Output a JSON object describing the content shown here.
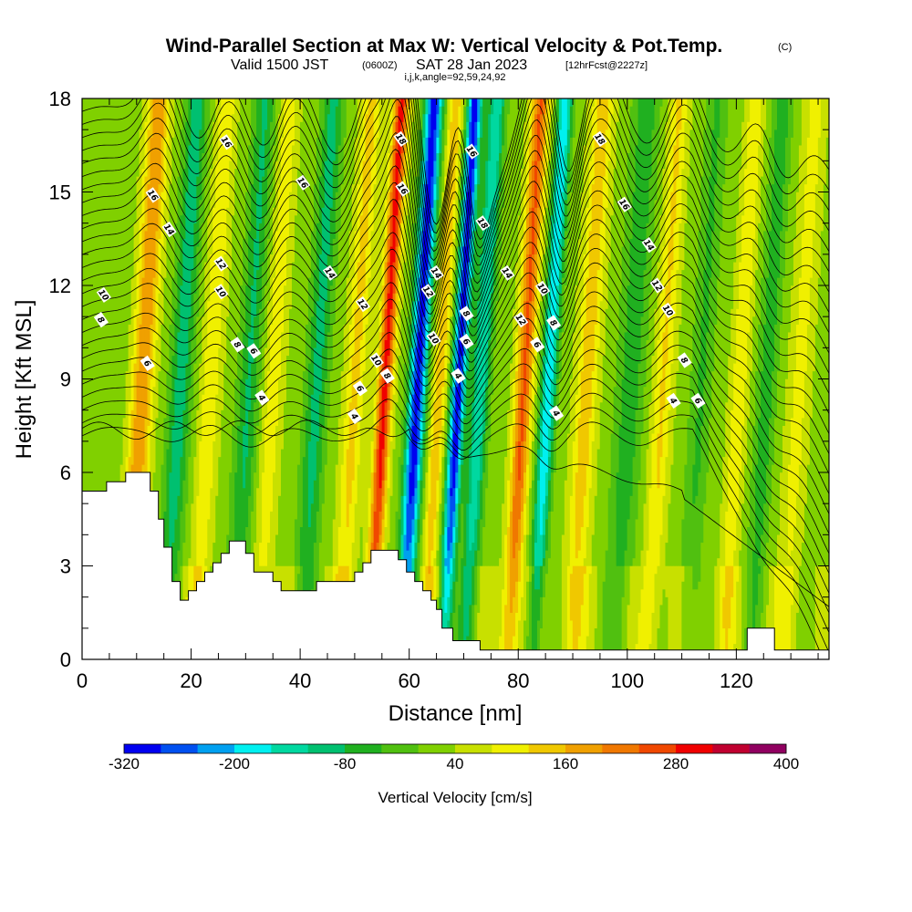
{
  "title": {
    "main": "Wind-Parallel Section at Max W: Vertical Velocity & Pot.Temp.",
    "copyright": "(C)",
    "valid_prefix": "Valid 1500 JST",
    "valid_utc": "(0600Z)",
    "valid_date": "SAT 28 Jan 2023",
    "forecast": "[12hrFcst@2227z]",
    "indices": "i,j,k,angle=92,59,24,92"
  },
  "chart_data": {
    "type": "heatmap",
    "xlabel": "Distance [nm]",
    "ylabel": "Height [Kft MSL]",
    "xlim": [
      0,
      137
    ],
    "ylim": [
      0,
      18
    ],
    "xticks": [
      "0",
      "20",
      "40",
      "60",
      "80",
      "100",
      "120"
    ],
    "yticks": [
      "0",
      "3",
      "6",
      "9",
      "12",
      "15",
      "18"
    ],
    "x_minor_step": 5,
    "y_minor_step": 1,
    "colorbar": {
      "title": "Vertical Velocity [cm/s]",
      "min": -320,
      "max": 400,
      "step": 40,
      "tick_labels": [
        "-320",
        "-200",
        "-80",
        "40",
        "160",
        "280",
        "400"
      ],
      "colors": [
        "#0000f0",
        "#0050f0",
        "#00a0f0",
        "#00f0f0",
        "#00d8a0",
        "#00c070",
        "#20b020",
        "#50c010",
        "#80d000",
        "#c8e000",
        "#f0f000",
        "#f0c800",
        "#f0a000",
        "#f07800",
        "#f04800",
        "#f00000",
        "#c00030",
        "#900060"
      ]
    },
    "velocity_bands": [
      {
        "x": 3.5,
        "w": 3.5,
        "v": -20
      },
      {
        "x": 11.5,
        "w": 2.0,
        "v": 175
      },
      {
        "x": 18.5,
        "w": 2.0,
        "v": -130
      },
      {
        "x": 24.0,
        "w": 1.8,
        "v": 90
      },
      {
        "x": 31.0,
        "w": 2.0,
        "v": -110
      },
      {
        "x": 35.5,
        "w": 1.8,
        "v": 80
      },
      {
        "x": 43.5,
        "w": 2.0,
        "v": -120
      },
      {
        "x": 50.5,
        "w": 1.8,
        "v": 110
      },
      {
        "x": 56.0,
        "w": 1.4,
        "v": 270
      },
      {
        "x": 62.0,
        "w": 1.6,
        "v": -330
      },
      {
        "x": 66.0,
        "w": 1.3,
        "v": 130
      },
      {
        "x": 69.5,
        "w": 1.3,
        "v": -330
      },
      {
        "x": 73.5,
        "w": 1.6,
        "v": -180
      },
      {
        "x": 81.5,
        "w": 1.6,
        "v": 220
      },
      {
        "x": 86.0,
        "w": 1.4,
        "v": -220
      },
      {
        "x": 93.0,
        "w": 2.0,
        "v": 120
      },
      {
        "x": 101.0,
        "w": 2.5,
        "v": -90
      },
      {
        "x": 107.0,
        "w": 1.8,
        "v": 100
      },
      {
        "x": 114.0,
        "w": 2.0,
        "v": -70
      },
      {
        "x": 121.0,
        "w": 1.6,
        "v": 90
      },
      {
        "x": 126.0,
        "w": 1.8,
        "v": -90
      },
      {
        "x": 132.0,
        "w": 2.0,
        "v": 70
      }
    ],
    "terrain": [
      [
        0,
        5.4
      ],
      [
        4.5,
        5.4
      ],
      [
        4.5,
        5.7
      ],
      [
        8,
        5.7
      ],
      [
        8,
        6.0
      ],
      [
        12.5,
        6.0
      ],
      [
        12.5,
        5.4
      ],
      [
        14,
        5.4
      ],
      [
        14,
        4.5
      ],
      [
        15,
        4.5
      ],
      [
        15,
        3.6
      ],
      [
        16.5,
        3.6
      ],
      [
        16.5,
        2.5
      ],
      [
        18,
        2.5
      ],
      [
        18,
        1.9
      ],
      [
        19.5,
        1.9
      ],
      [
        19.5,
        2.2
      ],
      [
        21,
        2.2
      ],
      [
        21,
        2.5
      ],
      [
        22.5,
        2.5
      ],
      [
        22.5,
        2.8
      ],
      [
        24,
        2.8
      ],
      [
        24,
        3.1
      ],
      [
        25.5,
        3.1
      ],
      [
        25.5,
        3.4
      ],
      [
        27,
        3.4
      ],
      [
        27,
        3.8
      ],
      [
        30,
        3.8
      ],
      [
        30,
        3.4
      ],
      [
        31.5,
        3.4
      ],
      [
        31.5,
        2.8
      ],
      [
        35,
        2.8
      ],
      [
        35,
        2.5
      ],
      [
        36.5,
        2.5
      ],
      [
        36.5,
        2.2
      ],
      [
        43,
        2.2
      ],
      [
        43,
        2.5
      ],
      [
        50,
        2.5
      ],
      [
        50,
        2.8
      ],
      [
        51.5,
        2.8
      ],
      [
        51.5,
        3.1
      ],
      [
        53,
        3.1
      ],
      [
        53,
        3.5
      ],
      [
        58,
        3.5
      ],
      [
        58,
        3.2
      ],
      [
        59.5,
        3.2
      ],
      [
        59.5,
        2.8
      ],
      [
        61,
        2.8
      ],
      [
        61,
        2.5
      ],
      [
        62.5,
        2.5
      ],
      [
        62.5,
        2.2
      ],
      [
        64,
        2.2
      ],
      [
        64,
        1.9
      ],
      [
        65,
        1.9
      ],
      [
        65,
        1.6
      ],
      [
        66,
        1.6
      ],
      [
        66,
        1.0
      ],
      [
        68,
        1.0
      ],
      [
        68,
        0.6
      ],
      [
        73,
        0.6
      ],
      [
        73,
        0.3
      ],
      [
        122,
        0.3
      ],
      [
        122,
        1.0
      ],
      [
        127,
        1.0
      ],
      [
        127,
        0.3
      ],
      [
        137,
        0.3
      ]
    ],
    "theta_contour_labels": [
      "16",
      "14",
      "12",
      "10",
      "8",
      "6",
      "4",
      "18"
    ],
    "contour_label_marks": [
      {
        "x": 4,
        "y": 11.7,
        "t": "10"
      },
      {
        "x": 3.5,
        "y": 10.9,
        "t": "8"
      },
      {
        "x": 13,
        "y": 14.9,
        "t": "16"
      },
      {
        "x": 16,
        "y": 13.8,
        "t": "14"
      },
      {
        "x": 12,
        "y": 9.5,
        "t": "6"
      },
      {
        "x": 26.5,
        "y": 16.6,
        "t": "16"
      },
      {
        "x": 25.5,
        "y": 12.7,
        "t": "12"
      },
      {
        "x": 25.5,
        "y": 11.8,
        "t": "10"
      },
      {
        "x": 28.5,
        "y": 10.1,
        "t": "8"
      },
      {
        "x": 31.5,
        "y": 9.9,
        "t": "6"
      },
      {
        "x": 33,
        "y": 8.4,
        "t": "4"
      },
      {
        "x": 40.5,
        "y": 15.3,
        "t": "16"
      },
      {
        "x": 45.5,
        "y": 12.4,
        "t": "14"
      },
      {
        "x": 51.5,
        "y": 11.4,
        "t": "12"
      },
      {
        "x": 54,
        "y": 9.6,
        "t": "10"
      },
      {
        "x": 51,
        "y": 8.7,
        "t": "6"
      },
      {
        "x": 56,
        "y": 9.1,
        "t": "8"
      },
      {
        "x": 50,
        "y": 7.8,
        "t": "4"
      },
      {
        "x": 58.5,
        "y": 16.7,
        "t": "18"
      },
      {
        "x": 58.8,
        "y": 15.1,
        "t": "16"
      },
      {
        "x": 63.5,
        "y": 11.8,
        "t": "12"
      },
      {
        "x": 65,
        "y": 12.4,
        "t": "14"
      },
      {
        "x": 64.5,
        "y": 10.3,
        "t": "10"
      },
      {
        "x": 71.5,
        "y": 16.3,
        "t": "16"
      },
      {
        "x": 73.5,
        "y": 14.0,
        "t": "18"
      },
      {
        "x": 70.5,
        "y": 11.1,
        "t": "8"
      },
      {
        "x": 70.5,
        "y": 10.2,
        "t": "6"
      },
      {
        "x": 69,
        "y": 9.1,
        "t": "4"
      },
      {
        "x": 78,
        "y": 12.4,
        "t": "14"
      },
      {
        "x": 80.5,
        "y": 10.9,
        "t": "12"
      },
      {
        "x": 84.5,
        "y": 11.9,
        "t": "10"
      },
      {
        "x": 86.5,
        "y": 10.8,
        "t": "8"
      },
      {
        "x": 83.5,
        "y": 10.1,
        "t": "6"
      },
      {
        "x": 87,
        "y": 7.9,
        "t": "4"
      },
      {
        "x": 95,
        "y": 16.7,
        "t": "18"
      },
      {
        "x": 99.5,
        "y": 14.6,
        "t": "16"
      },
      {
        "x": 104,
        "y": 13.3,
        "t": "14"
      },
      {
        "x": 105.5,
        "y": 12.0,
        "t": "12"
      },
      {
        "x": 107.5,
        "y": 11.2,
        "t": "10"
      },
      {
        "x": 110.5,
        "y": 9.6,
        "t": "8"
      },
      {
        "x": 108.5,
        "y": 8.3,
        "t": "4"
      },
      {
        "x": 113,
        "y": 8.3,
        "t": "6"
      }
    ]
  }
}
